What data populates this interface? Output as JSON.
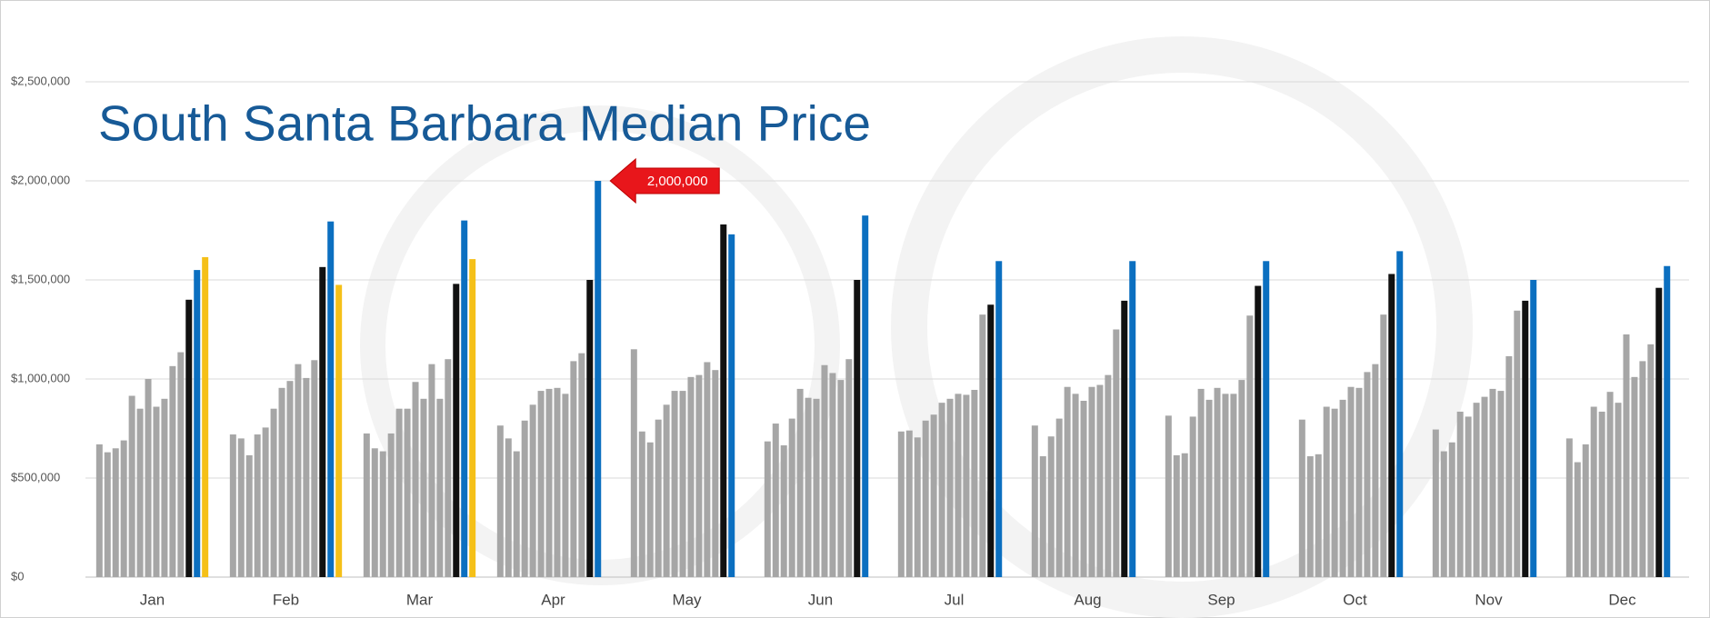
{
  "chart_data": {
    "type": "bar",
    "title": "South Santa Barbara Median Price",
    "categories": [
      "Jan",
      "Feb",
      "Mar",
      "Apr",
      "May",
      "Jun",
      "Jul",
      "Aug",
      "Sep",
      "Oct",
      "Nov",
      "Dec"
    ],
    "ylim": [
      0,
      2500000
    ],
    "yticks": [
      {
        "value": 0,
        "label": "$0"
      },
      {
        "value": 500000,
        "label": "$500,000"
      },
      {
        "value": 1000000,
        "label": "$1,000,000"
      },
      {
        "value": 1500000,
        "label": "$1,500,000"
      },
      {
        "value": 2000000,
        "label": "$2,000,000"
      },
      {
        "value": 2500000,
        "label": "$2,500,000"
      }
    ],
    "grid": true,
    "series": [
      {
        "color": "#a6a6a6",
        "values": [
          670000,
          720000,
          725000,
          765000,
          1150000,
          685000,
          735000,
          765000,
          815000,
          795000,
          745000,
          700000
        ]
      },
      {
        "color": "#a6a6a6",
        "values": [
          630000,
          700000,
          650000,
          700000,
          735000,
          775000,
          740000,
          610000,
          615000,
          610000,
          635000,
          580000
        ]
      },
      {
        "color": "#a6a6a6",
        "values": [
          650000,
          615000,
          635000,
          635000,
          680000,
          665000,
          705000,
          710000,
          625000,
          620000,
          680000,
          670000
        ]
      },
      {
        "color": "#a6a6a6",
        "values": [
          690000,
          720000,
          725000,
          790000,
          795000,
          800000,
          790000,
          800000,
          810000,
          860000,
          835000,
          860000
        ]
      },
      {
        "color": "#a6a6a6",
        "values": [
          915000,
          755000,
          850000,
          870000,
          870000,
          950000,
          820000,
          960000,
          950000,
          850000,
          810000,
          835000
        ]
      },
      {
        "color": "#a6a6a6",
        "values": [
          850000,
          850000,
          850000,
          940000,
          940000,
          905000,
          880000,
          925000,
          895000,
          895000,
          880000,
          935000
        ]
      },
      {
        "color": "#a6a6a6",
        "values": [
          1000000,
          955000,
          985000,
          950000,
          940000,
          900000,
          900000,
          890000,
          955000,
          960000,
          910000,
          880000
        ]
      },
      {
        "color": "#a6a6a6",
        "values": [
          860000,
          990000,
          900000,
          955000,
          1010000,
          1070000,
          925000,
          960000,
          925000,
          955000,
          950000,
          1225000
        ]
      },
      {
        "color": "#a6a6a6",
        "values": [
          900000,
          1075000,
          1075000,
          925000,
          1020000,
          1030000,
          920000,
          970000,
          925000,
          1035000,
          940000,
          1010000
        ]
      },
      {
        "color": "#a6a6a6",
        "values": [
          1065000,
          1005000,
          900000,
          1090000,
          1085000,
          995000,
          945000,
          1020000,
          995000,
          1075000,
          1115000,
          1090000
        ]
      },
      {
        "color": "#a6a6a6",
        "values": [
          1135000,
          1095000,
          1100000,
          1130000,
          1045000,
          1100000,
          1325000,
          1250000,
          1320000,
          1325000,
          1345000,
          1175000
        ]
      },
      {
        "color": "#111111",
        "values": [
          1400000,
          1565000,
          1480000,
          1500000,
          1780000,
          1500000,
          1375000,
          1395000,
          1470000,
          1530000,
          1395000,
          1460000
        ]
      },
      {
        "color": "#0b6fc0",
        "values": [
          1550000,
          1795000,
          1800000,
          2000000,
          1730000,
          1825000,
          1595000,
          1595000,
          1595000,
          1645000,
          1500000,
          1570000
        ],
        "value_labels": [
          null,
          null,
          null,
          "2,000,000",
          null,
          null,
          null,
          null,
          null,
          null,
          null,
          null
        ]
      },
      {
        "color": "#f5c018",
        "values": [
          1615000,
          1475000,
          1605000,
          null,
          null,
          null,
          null,
          null,
          null,
          null,
          null,
          null
        ]
      }
    ]
  }
}
